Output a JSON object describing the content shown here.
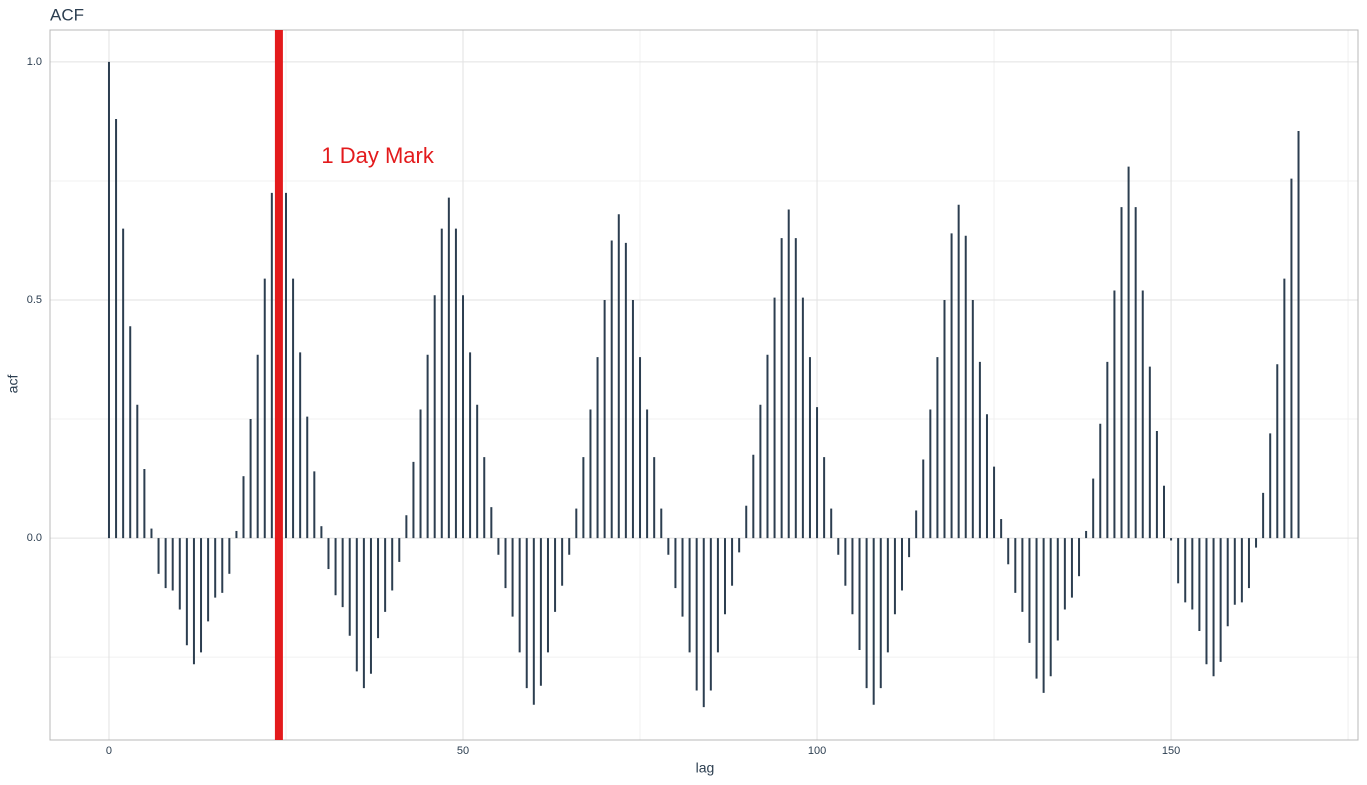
{
  "chart_data": {
    "type": "spike",
    "title": "ACF",
    "x_label": "lag",
    "y_label": "acf",
    "color": "#2c3e50",
    "grid": true,
    "xlim": [
      -8.33,
      176.4
    ],
    "ylim": [
      -0.424,
      1.067
    ],
    "xticks": [
      0,
      50,
      100,
      150
    ],
    "yticks": [
      {
        "value": 0,
        "label": "0.0"
      },
      {
        "value": 0.5,
        "label": "0.5"
      },
      {
        "value": 1,
        "label": "1.0"
      }
    ],
    "vline": {
      "x": 24,
      "color": "#e31a1c"
    },
    "annotation": {
      "text": "1 Day Mark",
      "x": 30,
      "y": 0.8,
      "color": "#e31a1c"
    },
    "x": [
      0,
      1,
      2,
      3,
      4,
      5,
      6,
      7,
      8,
      9,
      10,
      11,
      12,
      13,
      14,
      15,
      16,
      17,
      18,
      19,
      20,
      21,
      22,
      23,
      24,
      25,
      26,
      27,
      28,
      29,
      30,
      31,
      32,
      33,
      34,
      35,
      36,
      37,
      38,
      39,
      40,
      41,
      42,
      43,
      44,
      45,
      46,
      47,
      48,
      49,
      50,
      51,
      52,
      53,
      54,
      55,
      56,
      57,
      58,
      59,
      60,
      61,
      62,
      63,
      64,
      65,
      66,
      67,
      68,
      69,
      70,
      71,
      72,
      73,
      74,
      75,
      76,
      77,
      78,
      79,
      80,
      81,
      82,
      83,
      84,
      85,
      86,
      87,
      88,
      89,
      90,
      91,
      92,
      93,
      94,
      95,
      96,
      97,
      98,
      99,
      100,
      101,
      102,
      103,
      104,
      105,
      106,
      107,
      108,
      109,
      110,
      111,
      112,
      113,
      114,
      115,
      116,
      117,
      118,
      119,
      120,
      121,
      122,
      123,
      124,
      125,
      126,
      127,
      128,
      129,
      130,
      131,
      132,
      133,
      134,
      135,
      136,
      137,
      138,
      139,
      140,
      141,
      142,
      143,
      144,
      145,
      146,
      147,
      148,
      149,
      150,
      151,
      152,
      153,
      154,
      155,
      156,
      157,
      158,
      159,
      160,
      161,
      162,
      163,
      164,
      165,
      166,
      167,
      168
    ],
    "values": [
      1.0,
      0.88,
      0.65,
      0.445,
      0.28,
      0.145,
      0.02,
      -0.075,
      -0.105,
      -0.11,
      -0.15,
      -0.225,
      -0.265,
      -0.24,
      -0.175,
      -0.125,
      -0.115,
      -0.075,
      0.015,
      0.13,
      0.25,
      0.385,
      0.545,
      0.725,
      0.85,
      0.725,
      0.545,
      0.39,
      0.255,
      0.14,
      0.025,
      -0.065,
      -0.12,
      -0.145,
      -0.205,
      -0.28,
      -0.315,
      -0.285,
      -0.21,
      -0.155,
      -0.11,
      -0.05,
      0.048,
      0.16,
      0.27,
      0.385,
      0.51,
      0.65,
      0.715,
      0.65,
      0.51,
      0.39,
      0.28,
      0.17,
      0.065,
      -0.035,
      -0.105,
      -0.165,
      -0.24,
      -0.315,
      -0.35,
      -0.31,
      -0.24,
      -0.155,
      -0.1,
      -0.035,
      0.062,
      0.17,
      0.27,
      0.38,
      0.5,
      0.625,
      0.68,
      0.62,
      0.5,
      0.38,
      0.27,
      0.17,
      0.062,
      -0.035,
      -0.105,
      -0.165,
      -0.24,
      -0.32,
      -0.355,
      -0.32,
      -0.24,
      -0.16,
      -0.1,
      -0.03,
      0.068,
      0.175,
      0.28,
      0.385,
      0.505,
      0.63,
      0.69,
      0.63,
      0.505,
      0.38,
      0.275,
      0.17,
      0.062,
      -0.035,
      -0.1,
      -0.16,
      -0.235,
      -0.315,
      -0.35,
      -0.315,
      -0.24,
      -0.16,
      -0.11,
      -0.04,
      0.058,
      0.165,
      0.27,
      0.38,
      0.5,
      0.64,
      0.7,
      0.635,
      0.5,
      0.37,
      0.26,
      0.15,
      0.04,
      -0.055,
      -0.115,
      -0.155,
      -0.22,
      -0.295,
      -0.325,
      -0.29,
      -0.215,
      -0.15,
      -0.125,
      -0.08,
      0.015,
      0.125,
      0.24,
      0.37,
      0.52,
      0.695,
      0.78,
      0.695,
      0.52,
      0.36,
      0.225,
      0.11,
      -0.005,
      -0.095,
      -0.135,
      -0.15,
      -0.195,
      -0.265,
      -0.29,
      -0.26,
      -0.185,
      -0.14,
      -0.135,
      -0.105,
      -0.02,
      0.095,
      0.22,
      0.365,
      0.545,
      0.755,
      0.855
    ]
  }
}
